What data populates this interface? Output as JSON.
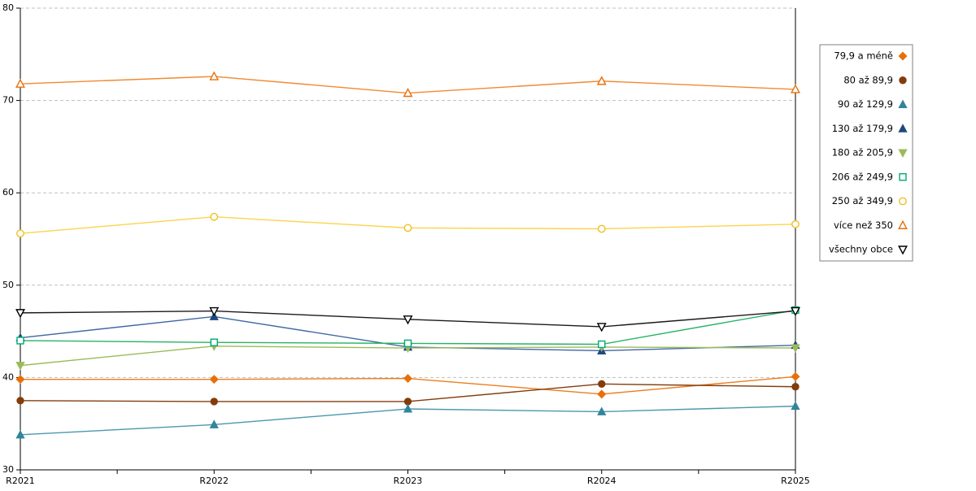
{
  "chart_data": {
    "type": "line",
    "categories": [
      "R2021",
      "R2022",
      "R2023",
      "R2024",
      "R2025"
    ],
    "ylim": [
      30,
      80
    ],
    "y_ticks": [
      30,
      40,
      50,
      60,
      70,
      80
    ],
    "grid": true,
    "legend_position": "right",
    "series": [
      {
        "name": "79,9 a méně",
        "marker": "diamond",
        "fill": "filled",
        "color": "#e8700a",
        "line_color": "#ec7d1c",
        "values": [
          39.8,
          39.8,
          39.9,
          38.2,
          40.1
        ]
      },
      {
        "name": "80 až 89,9",
        "marker": "circle",
        "fill": "filled",
        "color": "#843c0c",
        "line_color": "#843c0c",
        "values": [
          37.5,
          37.4,
          37.4,
          39.3,
          39.0
        ]
      },
      {
        "name": "90 až 129,9",
        "marker": "triangle-up",
        "fill": "filled",
        "color": "#31859c",
        "line_color": "#4b98ab",
        "values": [
          33.8,
          34.9,
          36.6,
          36.3,
          36.9
        ]
      },
      {
        "name": "130 až 179,9",
        "marker": "triangle-up",
        "fill": "filled",
        "color": "#1f497d",
        "line_color": "#4068a3",
        "values": [
          44.3,
          46.6,
          43.3,
          42.9,
          43.5
        ]
      },
      {
        "name": "180 až 205,9",
        "marker": "triangle-down",
        "fill": "filled",
        "color": "#9bbb59",
        "line_color": "#9bbb59",
        "values": [
          41.3,
          43.4,
          43.2,
          43.3,
          43.2
        ]
      },
      {
        "name": "206 až 249,9",
        "marker": "square",
        "fill": "open",
        "color": "#00a878",
        "line_color": "#28b266",
        "values": [
          44.0,
          43.8,
          43.7,
          43.6,
          47.3
        ]
      },
      {
        "name": "250 až 349,9",
        "marker": "circle",
        "fill": "open",
        "color": "#f0bf24",
        "line_color": "#fdd34e",
        "values": [
          55.6,
          57.4,
          56.2,
          56.1,
          56.6
        ]
      },
      {
        "name": "více než 350",
        "marker": "triangle-up",
        "fill": "open",
        "color": "#e8700a",
        "line_color": "#f18a32",
        "values": [
          71.8,
          72.6,
          70.8,
          72.1,
          71.2
        ]
      },
      {
        "name": "všechny obce",
        "marker": "triangle-down",
        "fill": "open",
        "color": "#000000",
        "line_color": "#1a1a1a",
        "values": [
          47.0,
          47.2,
          46.3,
          45.5,
          47.2
        ]
      }
    ],
    "colors": {
      "gridline": "#bfbfbf",
      "axis": "#000000",
      "legend_border": "#808080",
      "background": "#ffffff"
    }
  }
}
